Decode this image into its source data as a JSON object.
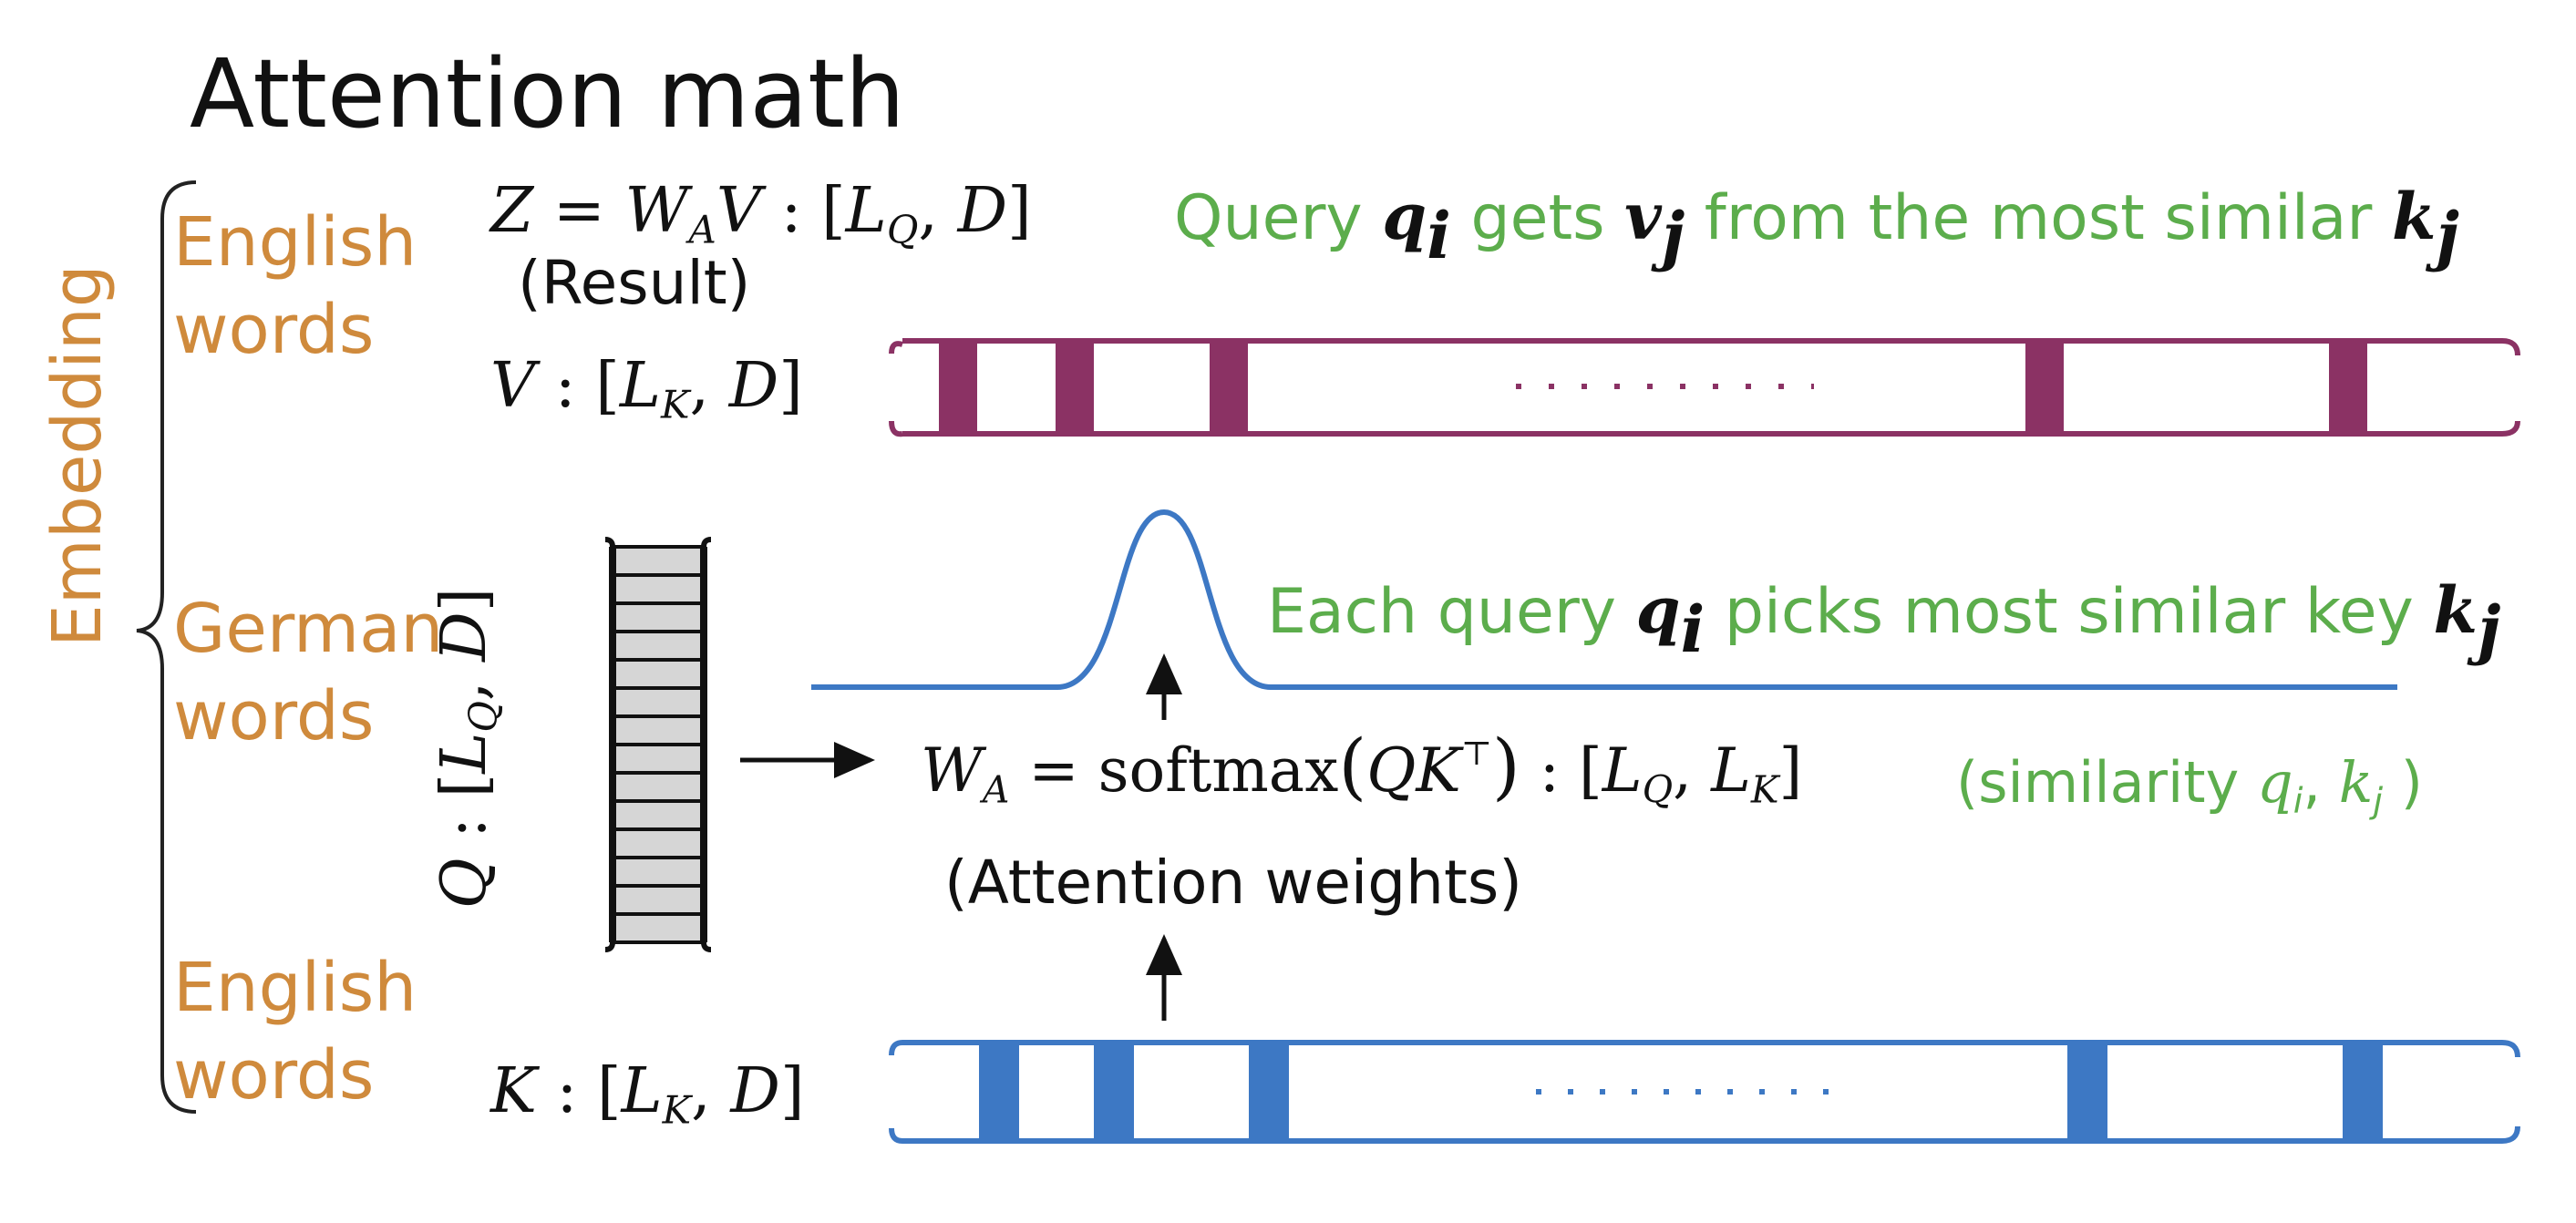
{
  "title": "Attention math",
  "left_labels": {
    "embedding": "Embedding",
    "english_words_top": [
      "English",
      "words"
    ],
    "german_words": [
      "German",
      "words"
    ],
    "english_words_bottom": [
      "English",
      "words"
    ]
  },
  "equations": {
    "z": {
      "z": "Z",
      "eq": "=",
      "w": "W",
      "w_sub": "A",
      "v": "V",
      "colon": ":",
      "dims_open": "[",
      "l": "L",
      "l_sub": "Q",
      "sep": ",",
      "d": "D",
      "dims_close": "]"
    },
    "result_label": "(Result)",
    "v": {
      "v": "V",
      "colon": ":",
      "dims_open": "[",
      "l": "L",
      "l_sub": "K",
      "sep": ",",
      "d": "D",
      "dims_close": "]"
    },
    "k": {
      "k": "K",
      "colon": ":",
      "dims_open": "[",
      "l": "L",
      "l_sub": "K",
      "sep": ",",
      "d": "D",
      "dims_close": "]"
    },
    "q_vertical": {
      "q": "Q",
      "colon": ":",
      "dims_open": "[",
      "l": "L",
      "l_sub": "Q",
      "sep": ",",
      "d": "D",
      "dims_close": "]"
    },
    "wa": {
      "w": "W",
      "w_sub": "A",
      "eq": "=",
      "func": "softmax",
      "open": "(",
      "q": "Q",
      "k": "K",
      "k_sup": "⊤",
      "close": ")",
      "colon": ":",
      "dims_open": "[",
      "l1": "L",
      "l1_sub": "Q",
      "sep": ",",
      "l2": "L",
      "l2_sub": "K",
      "dims_close": "]"
    },
    "attention_weights_label": "(Attention weights)"
  },
  "annotations": {
    "top": {
      "t1": "Query ",
      "q": "q",
      "q_sub": "i",
      "t2": " gets ",
      "v": "v",
      "v_sub": "j",
      "t3": " from the most similar ",
      "k": "k",
      "k_sub": "j"
    },
    "middle": {
      "t1": "Each query ",
      "q": "q",
      "q_sub": "i",
      "t2": " picks most similar key ",
      "k": "k",
      "k_sub": "j"
    },
    "similarity": {
      "t1": "(similarity ",
      "q": "q",
      "q_sub": "i",
      "sep": ", ",
      "k": "k",
      "k_sub": "j",
      "t2": " )"
    }
  },
  "colors": {
    "title": "#111111",
    "label_orange": "#cf8a3c",
    "annotation_green": "#5cad4c",
    "value_bar": "#8b3264",
    "key_bar": "#3d78c4",
    "softmax_curve": "#3d78c4",
    "query_stack": "#d4d4d4"
  }
}
